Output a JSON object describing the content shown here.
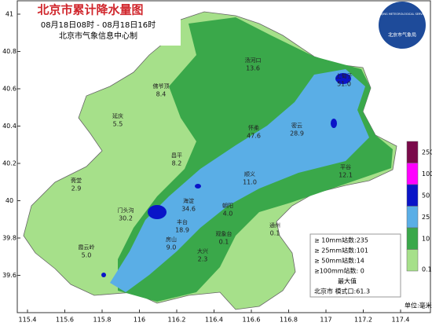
{
  "header": {
    "title": "北京市累计降水量图",
    "time": "08月18日08时 - 08月18日16时",
    "producer": "北京市气象信息中心制"
  },
  "logo": {
    "name": "北京市气象局",
    "english": "BEIJING METEOROLOGICAL SERVICE"
  },
  "axes": {
    "lat_ticks": [
      41,
      40.8,
      40.6,
      40.4,
      40.2,
      40,
      39.8,
      39.6
    ],
    "lon_ticks": [
      115.4,
      115.6,
      115.8,
      116,
      116.2,
      116.4,
      116.6,
      116.8,
      117,
      117.2,
      117.4
    ]
  },
  "stations": [
    {
      "name": "延庆",
      "value": "5.5"
    },
    {
      "name": "佛爷顶",
      "value": "8.4"
    },
    {
      "name": "汤河口",
      "value": "13.6"
    },
    {
      "name": "上甸子",
      "value": "51.0"
    },
    {
      "name": "怀柔",
      "value": "47.6"
    },
    {
      "name": "密云",
      "value": "28.9"
    },
    {
      "name": "昌平",
      "value": "8.2"
    },
    {
      "name": "顺义",
      "value": "11.0"
    },
    {
      "name": "平谷",
      "value": "12.1"
    },
    {
      "name": "斋堂",
      "value": "2.9"
    },
    {
      "name": "门头沟",
      "value": "30.2"
    },
    {
      "name": "海淀",
      "value": "34.6"
    },
    {
      "name": "朝阳",
      "value": "4.0"
    },
    {
      "name": "丰台",
      "value": "18.9"
    },
    {
      "name": "房山",
      "value": "9.0"
    },
    {
      "name": "大兴",
      "value": "2.3"
    },
    {
      "name": "霞云岭",
      "value": "5.0"
    },
    {
      "name": "观象台",
      "value": "0.1"
    },
    {
      "name": "通州",
      "value": "0.1"
    }
  ],
  "legend": {
    "levels": [
      {
        "value": 250,
        "color": "#7a0a4a"
      },
      {
        "value": 100,
        "color": "#ff00ff"
      },
      {
        "value": 50,
        "color": "#0a14c8"
      },
      {
        "value": 25,
        "color": "#5aaee6"
      },
      {
        "value": 10,
        "color": "#3aa84a"
      },
      {
        "value": 0.1,
        "color": "#a6e08a"
      }
    ],
    "unit": "单位:毫米"
  },
  "stats": [
    "≥ 10mm站数:235",
    "≥ 25mm站数:101",
    "≥ 50mm站数:14",
    "≥100mm站数: 0",
    "最大值",
    "北京市  模式口:61.3"
  ]
}
